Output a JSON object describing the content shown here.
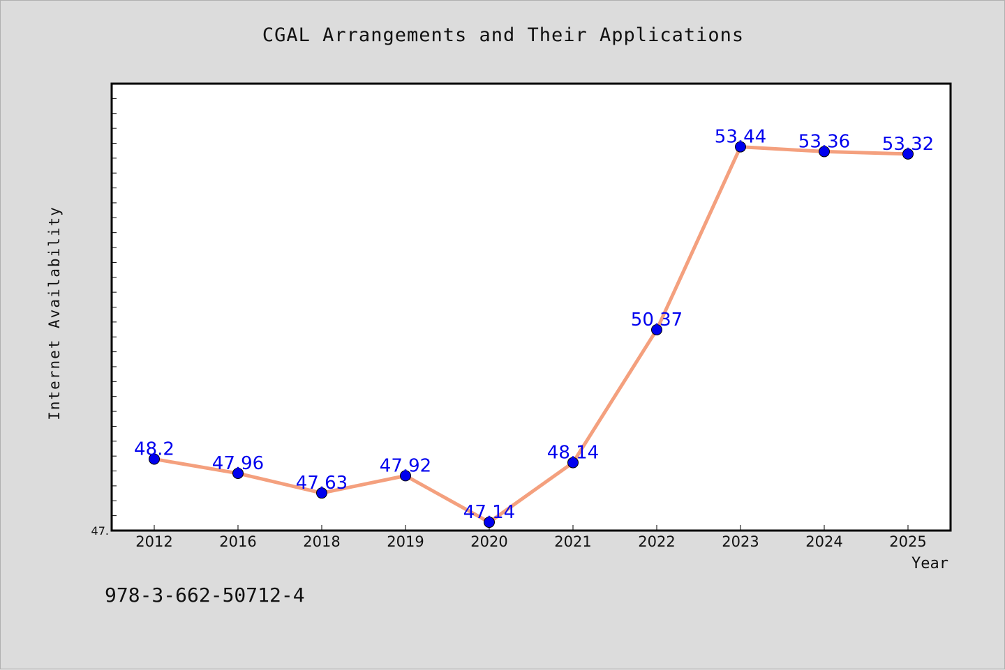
{
  "chart_data": {
    "type": "line",
    "title": "CGAL Arrangements and Their Applications",
    "xlabel": "Year",
    "ylabel": "Internet Availability",
    "categories": [
      "2012",
      "2016",
      "2018",
      "2019",
      "2020",
      "2021",
      "2022",
      "2023",
      "2024",
      "2025"
    ],
    "values": [
      48.2,
      47.96,
      47.63,
      47.92,
      47.14,
      48.14,
      50.37,
      53.44,
      53.36,
      53.32
    ],
    "data_labels": [
      "48.2",
      "47.96",
      "47.63",
      "47.92",
      "47.14",
      "48.14",
      "50.37",
      "53.44",
      "53.36",
      "53.32"
    ],
    "ylim": [
      47.0,
      54.5
    ],
    "y_tick_label": "47.",
    "grid": false,
    "colors": {
      "line": "#f4a07e",
      "marker": "#0000ee",
      "label": "#0000ee",
      "background": "#dcdcdc",
      "plot_bg": "#ffffff"
    }
  },
  "footer": {
    "isbn": "978-3-662-50712-4"
  }
}
